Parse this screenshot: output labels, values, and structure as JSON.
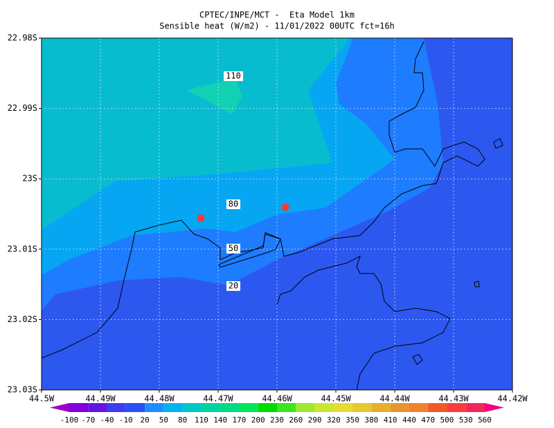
{
  "header": {
    "line1": "CPTEC/INPE/MCT -  Eta Model 1km",
    "line2": "Sensible heat (W/m2) - 11/01/2022 00UTC fct=16h"
  },
  "map": {
    "x_ticks": [
      "44.5W",
      "44.49W",
      "44.48W",
      "44.47W",
      "44.46W",
      "44.45W",
      "44.44W",
      "44.43W",
      "44.42W"
    ],
    "y_ticks": [
      "22.98S",
      "22.99S",
      "23S",
      "23.01S",
      "23.02S",
      "23.03S"
    ],
    "contour_labels": [
      110,
      80,
      50,
      20
    ]
  },
  "colorbar": {
    "labels": [
      -100,
      -70,
      -40,
      -10,
      20,
      50,
      80,
      110,
      140,
      170,
      200,
      230,
      260,
      290,
      320,
      350,
      380,
      410,
      440,
      470,
      500,
      530,
      560
    ],
    "colors": [
      "#a000c8",
      "#8200dc",
      "#6414e6",
      "#3c3cf0",
      "#2850f5",
      "#1e8cff",
      "#00b4f0",
      "#00c8c8",
      "#00d2a0",
      "#00dc82",
      "#00e65a",
      "#00dc00",
      "#3ce61e",
      "#a0e632",
      "#c8e632",
      "#e6dc32",
      "#e6c832",
      "#e6af2d",
      "#e6962d",
      "#f0822d",
      "#f05a28",
      "#fa3c3c",
      "#f0285a",
      "#f00082"
    ]
  }
}
